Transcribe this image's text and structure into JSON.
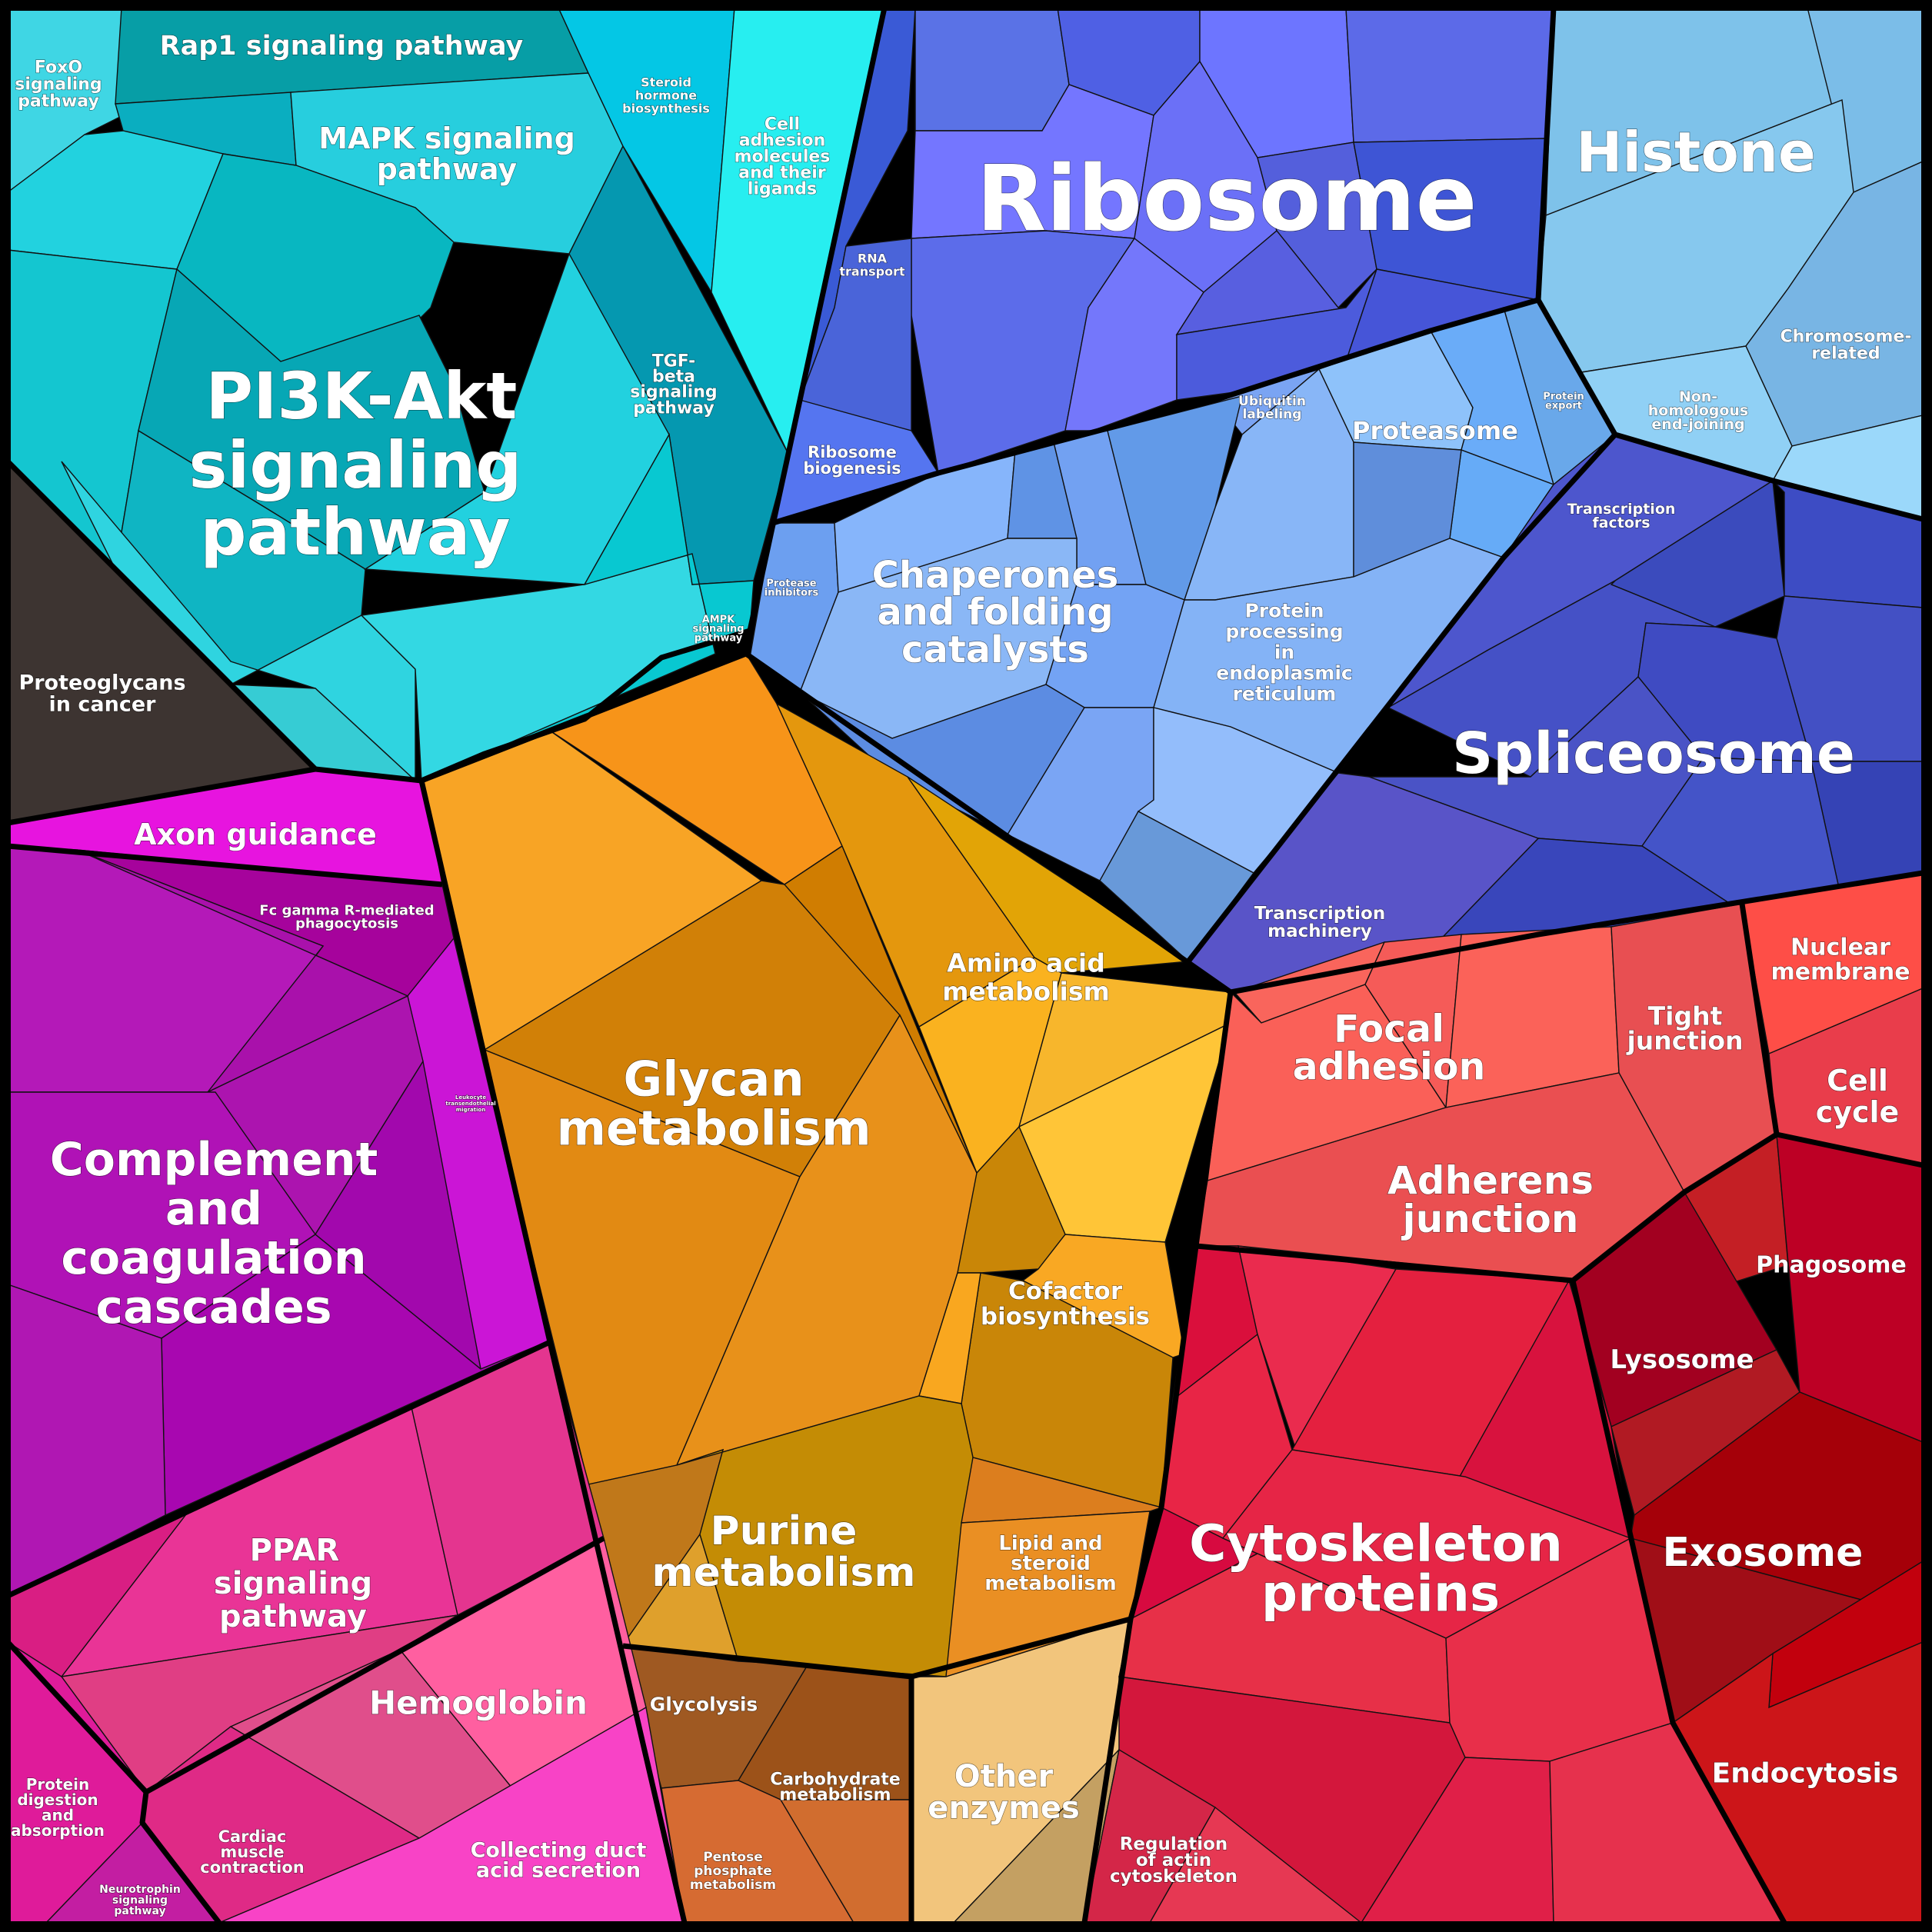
{
  "diagram": {
    "type": "voronoi-treemap",
    "groups": [
      {
        "name": "PI3K-Akt signaling pathway",
        "color": "#17c3cf"
      },
      {
        "name": "Ribosome",
        "color": "#5e6af0"
      },
      {
        "name": "Histone",
        "color": "#86c6ef"
      },
      {
        "name": "Spliceosome",
        "color": "#3d4bc1"
      },
      {
        "name": "Chaperones and folding catalysts",
        "color": "#7fa9f2"
      },
      {
        "name": "Glycan metabolism",
        "color": "#e8900f"
      },
      {
        "name": "Complement and coagulation cascades",
        "color": "#ac12b4"
      },
      {
        "name": "PPAR signaling pathway",
        "color": "#e8308f"
      },
      {
        "name": "Cytoskeleton proteins",
        "color": "#dd1e45"
      },
      {
        "name": "Focal adhesion",
        "color": "#f05a58"
      }
    ],
    "labels": [
      {
        "text": "Ribosome"
      },
      {
        "text": "Histone"
      },
      {
        "text": "PI3K-Akt"
      },
      {
        "text": "signaling"
      },
      {
        "text": "pathway"
      },
      {
        "text": "Rap1 signaling pathway"
      },
      {
        "text": "MAPK signaling"
      },
      {
        "text": "pathway"
      },
      {
        "text": "FoxO"
      },
      {
        "text": "signaling"
      },
      {
        "text": "pathway"
      },
      {
        "text": "Steroid"
      },
      {
        "text": "hormone"
      },
      {
        "text": "biosynthesis"
      },
      {
        "text": "Cell"
      },
      {
        "text": "adhesion"
      },
      {
        "text": "molecules"
      },
      {
        "text": "and their"
      },
      {
        "text": "ligands"
      },
      {
        "text": "TGF-"
      },
      {
        "text": "beta"
      },
      {
        "text": "signaling"
      },
      {
        "text": "pathway"
      },
      {
        "text": "AMPK"
      },
      {
        "text": "signaling"
      },
      {
        "text": "pathway"
      },
      {
        "text": "Proteoglycans"
      },
      {
        "text": "in cancer"
      },
      {
        "text": "RNA"
      },
      {
        "text": "transport"
      },
      {
        "text": "Ribosome"
      },
      {
        "text": "biogenesis"
      },
      {
        "text": "Chromosome-"
      },
      {
        "text": "related"
      },
      {
        "text": "Non-"
      },
      {
        "text": "homologous"
      },
      {
        "text": "end-joining"
      },
      {
        "text": "Protein"
      },
      {
        "text": "export"
      },
      {
        "text": "Ubiquitin"
      },
      {
        "text": "labeling"
      },
      {
        "text": "Proteasome"
      },
      {
        "text": "Chaperones"
      },
      {
        "text": "and folding"
      },
      {
        "text": "catalysts"
      },
      {
        "text": "Protease"
      },
      {
        "text": "inhibitors"
      },
      {
        "text": "Protein"
      },
      {
        "text": "processing"
      },
      {
        "text": "in"
      },
      {
        "text": "endoplasmic"
      },
      {
        "text": "reticulum"
      },
      {
        "text": "Transcription"
      },
      {
        "text": "factors"
      },
      {
        "text": "Spliceosome"
      },
      {
        "text": "Transcription"
      },
      {
        "text": "machinery"
      },
      {
        "text": "Axon guidance"
      },
      {
        "text": "Fc gamma R-mediated"
      },
      {
        "text": "phagocytosis"
      },
      {
        "text": "Leukocyte"
      },
      {
        "text": "transendothelial"
      },
      {
        "text": "migration"
      },
      {
        "text": "Complement"
      },
      {
        "text": "and"
      },
      {
        "text": "coagulation"
      },
      {
        "text": "cascades"
      },
      {
        "text": "Glycan"
      },
      {
        "text": "metabolism"
      },
      {
        "text": "Amino acid"
      },
      {
        "text": "metabolism"
      },
      {
        "text": "Cofactor"
      },
      {
        "text": "biosynthesis"
      },
      {
        "text": "Purine"
      },
      {
        "text": "metabolism"
      },
      {
        "text": "Lipid and"
      },
      {
        "text": "steroid"
      },
      {
        "text": "metabolism"
      },
      {
        "text": "Glycolysis"
      },
      {
        "text": "Carbohydrate"
      },
      {
        "text": "metabolism"
      },
      {
        "text": "Pentose"
      },
      {
        "text": "phosphate"
      },
      {
        "text": "metabolism"
      },
      {
        "text": "Other"
      },
      {
        "text": "enzymes"
      },
      {
        "text": "PPAR"
      },
      {
        "text": "signaling"
      },
      {
        "text": "pathway"
      },
      {
        "text": "Hemoglobin"
      },
      {
        "text": "Protein"
      },
      {
        "text": "digestion"
      },
      {
        "text": "and"
      },
      {
        "text": "absorption"
      },
      {
        "text": "Neurotrophin"
      },
      {
        "text": "signaling"
      },
      {
        "text": "pathway"
      },
      {
        "text": "Cardiac"
      },
      {
        "text": "muscle"
      },
      {
        "text": "contraction"
      },
      {
        "text": "Collecting duct"
      },
      {
        "text": "acid secretion"
      },
      {
        "text": "Focal"
      },
      {
        "text": "adhesion"
      },
      {
        "text": "Tight"
      },
      {
        "text": "junction"
      },
      {
        "text": "Nuclear"
      },
      {
        "text": "membrane"
      },
      {
        "text": "Cell"
      },
      {
        "text": "cycle"
      },
      {
        "text": "Adherens"
      },
      {
        "text": "junction"
      },
      {
        "text": "Phagosome"
      },
      {
        "text": "Lysosome"
      },
      {
        "text": "Exosome"
      },
      {
        "text": "Cytoskeleton"
      },
      {
        "text": "proteins"
      },
      {
        "text": "Endocytosis"
      },
      {
        "text": "Regulation"
      },
      {
        "text": "of actin"
      },
      {
        "text": "cytoskeleton"
      }
    ]
  }
}
